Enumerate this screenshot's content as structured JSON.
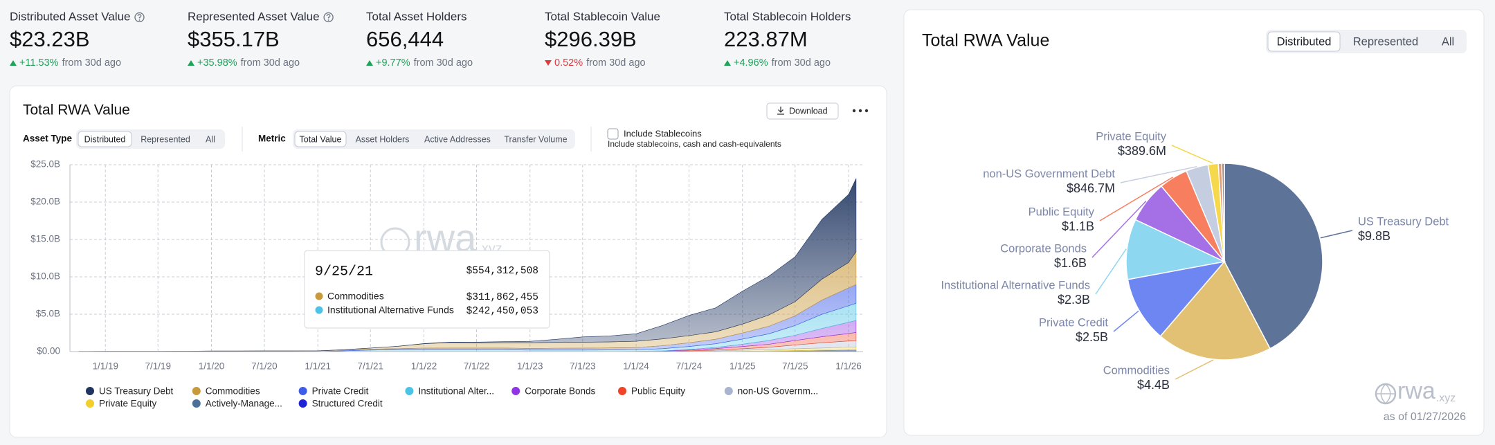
{
  "stats": [
    {
      "label": "Distributed Asset Value",
      "info": true,
      "value": "$23.23B",
      "change": "+11.53%",
      "direction": "up",
      "period": "from 30d ago"
    },
    {
      "label": "Represented Asset Value",
      "info": true,
      "value": "$355.17B",
      "change": "+35.98%",
      "direction": "up",
      "period": "from 30d ago"
    },
    {
      "label": "Total Asset Holders",
      "info": false,
      "value": "656,444",
      "change": "+9.77%",
      "direction": "up",
      "period": "from 30d ago"
    },
    {
      "label": "Total Stablecoin Value",
      "info": false,
      "value": "$296.39B",
      "change": "0.52%",
      "direction": "down",
      "period": "from 30d ago"
    },
    {
      "label": "Total Stablecoin Holders",
      "info": false,
      "value": "223.87M",
      "change": "+4.96%",
      "direction": "up",
      "period": "from 30d ago"
    }
  ],
  "left_card": {
    "download": "Download",
    "asset_type": {
      "label": "Asset Type",
      "options": [
        "Distributed",
        "Represented",
        "All"
      ],
      "active": 0
    },
    "metric": {
      "label": "Metric",
      "options": [
        "Total Value",
        "Asset Holders",
        "Active Addresses",
        "Transfer Volume"
      ],
      "active": 0
    },
    "stablecoins": {
      "label": "Include Stablecoins",
      "note": "Include stablecoins, cash and cash-equivalents",
      "checked": false
    },
    "tooltip": {
      "date": "9/25/21",
      "total": "$554,312,508",
      "rows": [
        {
          "name": "Commodities",
          "color": "#c99a3c",
          "value": "$311,862,455"
        },
        {
          "name": "Institutional Alternative Funds",
          "color": "#4cc3e6",
          "value": "$242,450,053"
        }
      ]
    }
  },
  "right_card": {
    "options": [
      "Distributed",
      "Represented",
      "All"
    ],
    "active": 0,
    "as_of": "as of 01/27/2026"
  },
  "logo": {
    "name": "rwa",
    "suffix": ".xyz"
  },
  "chart_data": [
    {
      "type": "area",
      "stacked": true,
      "title": "Total RWA Value",
      "grid": true,
      "legend": "bottom",
      "x": [
        "10/1/18",
        "1/1/19",
        "4/1/19",
        "7/1/19",
        "10/1/19",
        "1/1/20",
        "4/1/20",
        "7/1/20",
        "10/1/20",
        "1/1/21",
        "4/1/21",
        "7/1/21",
        "10/1/21",
        "1/1/22",
        "4/1/22",
        "7/1/22",
        "10/1/22",
        "1/1/23",
        "4/1/23",
        "7/1/23",
        "10/1/23",
        "1/1/24",
        "4/1/24",
        "7/1/24",
        "10/1/24",
        "1/1/25",
        "4/1/25",
        "7/1/25",
        "10/1/25",
        "1/1/26",
        "1/27/26"
      ],
      "xlim": [
        "9/1/18",
        "2/20/26"
      ],
      "xticks": [
        "1/1/19",
        "7/1/19",
        "1/1/20",
        "7/1/20",
        "1/1/21",
        "7/1/21",
        "1/1/22",
        "7/1/22",
        "1/1/23",
        "7/1/23",
        "1/1/24",
        "7/1/24",
        "1/1/25",
        "7/1/25",
        "1/1/26"
      ],
      "ylim": [
        0,
        25
      ],
      "yticks": [
        {
          "value": 0,
          "label": "$0.00"
        },
        {
          "value": 5,
          "label": "$5.0B"
        },
        {
          "value": 10,
          "label": "$10.0B"
        },
        {
          "value": 15,
          "label": "$15.0B"
        },
        {
          "value": 20,
          "label": "$20.0B"
        },
        {
          "value": 25,
          "label": "$25.0B"
        }
      ],
      "series": [
        {
          "name": "US Treasury Debt",
          "color": "#1f3560",
          "values": [
            0,
            0,
            0,
            0,
            0,
            0,
            0,
            0,
            0,
            0,
            0,
            0,
            0,
            0.02,
            0.05,
            0.1,
            0.15,
            0.2,
            0.4,
            0.7,
            0.8,
            1.0,
            1.8,
            2.7,
            3.2,
            4.4,
            5.2,
            6.0,
            8.0,
            9.1,
            9.8
          ]
        },
        {
          "name": "Commodities",
          "color": "#c99a3c",
          "values": [
            0,
            0,
            0,
            0,
            0,
            0,
            0,
            0,
            0,
            0.01,
            0.05,
            0.15,
            0.31,
            0.6,
            0.75,
            0.7,
            0.7,
            0.75,
            0.8,
            0.8,
            0.8,
            0.85,
            0.9,
            0.95,
            1.0,
            1.2,
            1.5,
            1.9,
            2.8,
            3.4,
            4.4
          ]
        },
        {
          "name": "Private Credit",
          "color": "#3d5ce8",
          "values": [
            0.03,
            0.04,
            0.05,
            0.05,
            0.06,
            0.07,
            0.07,
            0.08,
            0.08,
            0.09,
            0.1,
            0.12,
            0.15,
            0.2,
            0.22,
            0.22,
            0.22,
            0.22,
            0.24,
            0.26,
            0.28,
            0.3,
            0.4,
            0.5,
            0.6,
            0.8,
            1.0,
            1.3,
            1.9,
            2.4,
            2.5
          ]
        },
        {
          "name": "Institutional Alter...",
          "color": "#4cc3e6",
          "values": [
            0,
            0,
            0,
            0,
            0,
            0,
            0,
            0,
            0,
            0,
            0.1,
            0.2,
            0.24,
            0.25,
            0.25,
            0.25,
            0.25,
            0.2,
            0.2,
            0.2,
            0.2,
            0.2,
            0.3,
            0.4,
            0.5,
            0.7,
            0.9,
            1.3,
            1.9,
            2.2,
            2.3
          ]
        },
        {
          "name": "Corporate Bonds",
          "color": "#8f35e3",
          "values": [
            0,
            0,
            0,
            0,
            0,
            0,
            0,
            0,
            0,
            0,
            0,
            0,
            0,
            0,
            0,
            0,
            0,
            0,
            0,
            0,
            0.01,
            0.02,
            0.04,
            0.08,
            0.15,
            0.3,
            0.5,
            0.7,
            1.1,
            1.5,
            1.6
          ]
        },
        {
          "name": "Public Equity",
          "color": "#ef4427",
          "values": [
            0,
            0,
            0,
            0,
            0,
            0,
            0,
            0,
            0,
            0,
            0,
            0,
            0,
            0,
            0,
            0,
            0,
            0,
            0,
            0,
            0,
            0.01,
            0.05,
            0.1,
            0.2,
            0.3,
            0.4,
            0.6,
            0.8,
            1.0,
            1.1
          ]
        },
        {
          "name": "non-US Governm...",
          "color": "#a9b4cf",
          "values": [
            0,
            0,
            0,
            0,
            0,
            0,
            0,
            0,
            0,
            0,
            0,
            0,
            0,
            0,
            0,
            0,
            0,
            0,
            0,
            0,
            0,
            0,
            0,
            0.05,
            0.1,
            0.2,
            0.3,
            0.5,
            0.7,
            0.82,
            0.85
          ]
        },
        {
          "name": "Private Equity",
          "color": "#f2cf2a",
          "values": [
            0,
            0,
            0,
            0,
            0,
            0,
            0,
            0,
            0,
            0,
            0,
            0,
            0,
            0,
            0,
            0,
            0,
            0,
            0,
            0,
            0,
            0,
            0,
            0.05,
            0.1,
            0.15,
            0.2,
            0.25,
            0.3,
            0.38,
            0.39
          ]
        },
        {
          "name": "Actively-Manage...",
          "color": "#4d6f98",
          "values": [
            0,
            0,
            0,
            0,
            0,
            0,
            0,
            0,
            0,
            0,
            0,
            0,
            0,
            0,
            0,
            0,
            0,
            0,
            0,
            0,
            0,
            0,
            0,
            0,
            0,
            0.02,
            0.05,
            0.08,
            0.1,
            0.12,
            0.12
          ]
        },
        {
          "name": "Structured Credit",
          "color": "#1d22d6",
          "values": [
            0,
            0,
            0,
            0,
            0,
            0,
            0,
            0,
            0,
            0,
            0,
            0,
            0,
            0,
            0,
            0,
            0,
            0,
            0,
            0,
            0,
            0,
            0,
            0,
            0,
            0.01,
            0.02,
            0.05,
            0.08,
            0.1,
            0.1
          ]
        }
      ]
    },
    {
      "type": "pie",
      "title": "Total RWA Value",
      "categories": [
        "US Treasury Debt",
        "Commodities",
        "Private Credit",
        "Institutional Alternative Funds",
        "Corporate Bonds",
        "Public Equity",
        "non-US Government Debt",
        "Private Equity",
        null,
        null
      ],
      "values": [
        9.8,
        4.4,
        2.5,
        2.3,
        1.6,
        1.1,
        0.8467,
        0.3896,
        0.13,
        0.1
      ],
      "value_labels": [
        "$9.8B",
        "$4.4B",
        "$2.5B",
        "$2.3B",
        "$1.6B",
        "$1.1B",
        "$846.7M",
        "$389.6M",
        null,
        null
      ],
      "colors": [
        "#5d7398",
        "#e2c074",
        "#6e86f2",
        "#8ed7f0",
        "#a56fe6",
        "#f77f5f",
        "#c5cde0",
        "#f5d84c",
        "#e39a72",
        "#a48c84"
      ]
    }
  ]
}
